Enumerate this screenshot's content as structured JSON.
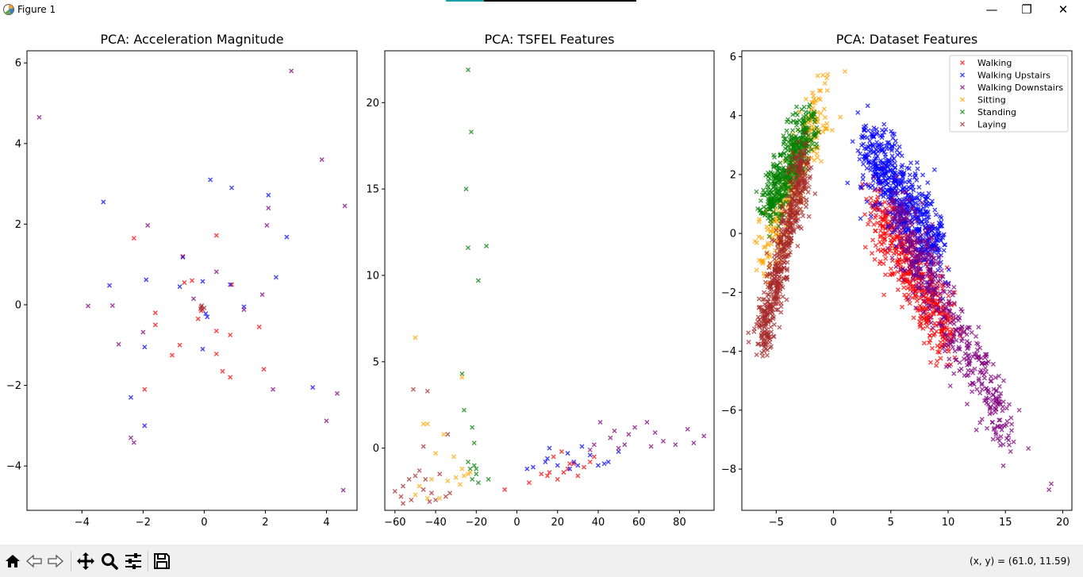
{
  "window": {
    "title": "Figure 1",
    "minimize_glyph": "—",
    "maximize_glyph": "❐",
    "close_glyph": "✕"
  },
  "toolbar": {
    "icons": [
      "home-icon",
      "back-icon",
      "forward-icon",
      "pan-icon",
      "zoom-icon",
      "configure-subplots-icon",
      "save-icon"
    ],
    "coords_text": "(x, y) = (61.0, 11.59)"
  },
  "colors": {
    "Walking": "#ff0000",
    "Walking Upstairs": "#0000ff",
    "Walking Downstairs": "#800080",
    "Sitting": "#ffa500",
    "Standing": "#008000",
    "Laying": "#a52a2a"
  },
  "chart_data": [
    {
      "type": "scatter",
      "title": "PCA: Acceleration Magnitude",
      "xlim": [
        -5.8,
        5.0
      ],
      "ylim": [
        -5.1,
        6.3
      ],
      "xticks": [
        -4,
        -2,
        0,
        2,
        4
      ],
      "yticks": [
        -4,
        -2,
        0,
        2,
        4,
        6
      ],
      "marker": "x",
      "series": [
        {
          "key": "Walking",
          "points": [
            [
              -2.3,
              1.65
            ],
            [
              -1.6,
              -0.2
            ],
            [
              -1.6,
              -0.5
            ],
            [
              -0.65,
              0.55
            ],
            [
              -0.4,
              0.6
            ],
            [
              0.4,
              1.72
            ],
            [
              0.9,
              0.5
            ],
            [
              1.8,
              -0.55
            ],
            [
              -0.7,
              1.2
            ],
            [
              -1.05,
              -1.25
            ],
            [
              -0.8,
              -1.0
            ],
            [
              0.4,
              -0.65
            ],
            [
              0.4,
              -1.22
            ],
            [
              0.6,
              -1.65
            ],
            [
              0.85,
              -1.8
            ],
            [
              0.85,
              -0.75
            ],
            [
              1.95,
              -1.6
            ],
            [
              -1.95,
              -2.1
            ],
            [
              -0.2,
              -0.35
            ],
            [
              -0.1,
              -0.15
            ]
          ]
        },
        {
          "key": "Walking Upstairs",
          "points": [
            [
              -3.3,
              2.55
            ],
            [
              -1.9,
              0.62
            ],
            [
              -3.1,
              0.48
            ],
            [
              -0.7,
              1.18
            ],
            [
              -0.8,
              0.45
            ],
            [
              0.2,
              3.1
            ],
            [
              0.9,
              2.9
            ],
            [
              2.1,
              2.72
            ],
            [
              2.35,
              0.68
            ],
            [
              2.7,
              1.68
            ],
            [
              1.3,
              -0.05
            ],
            [
              0.1,
              -0.3
            ],
            [
              0.05,
              -0.22
            ],
            [
              -0.05,
              0.58
            ],
            [
              0.85,
              0.5
            ],
            [
              -1.95,
              -1.05
            ],
            [
              -0.05,
              -1.1
            ],
            [
              -2.4,
              -2.3
            ],
            [
              -1.95,
              -3.0
            ],
            [
              3.55,
              -2.05
            ]
          ]
        },
        {
          "key": "Walking Downstairs",
          "points": [
            [
              -5.4,
              4.65
            ],
            [
              2.85,
              5.8
            ],
            [
              3.85,
              3.6
            ],
            [
              4.6,
              2.45
            ],
            [
              2.1,
              2.4
            ],
            [
              2.05,
              1.97
            ],
            [
              -1.85,
              1.97
            ],
            [
              -0.35,
              0.15
            ],
            [
              0.4,
              0.82
            ],
            [
              1.9,
              0.25
            ],
            [
              1.3,
              -0.12
            ],
            [
              -3.8,
              -0.03
            ],
            [
              -3.0,
              -0.02
            ],
            [
              -2.8,
              -0.98
            ],
            [
              -2.0,
              -0.68
            ],
            [
              2.25,
              -2.1
            ],
            [
              4.35,
              -2.2
            ],
            [
              4.0,
              -2.88
            ],
            [
              4.55,
              -4.6
            ],
            [
              -2.4,
              -3.3
            ],
            [
              -2.3,
              -3.42
            ]
          ]
        },
        {
          "key": "Laying",
          "points": [
            [
              -0.1,
              -0.05
            ],
            [
              -0.05,
              -0.12
            ],
            [
              -0.12,
              -0.1
            ],
            [
              0.0,
              -0.08
            ],
            [
              -0.08,
              -0.02
            ]
          ]
        }
      ]
    },
    {
      "type": "scatter",
      "title": "PCA: TSFEL Features",
      "xlim": [
        -65,
        97
      ],
      "ylim": [
        -3.6,
        23.0
      ],
      "xticks": [
        -60,
        -40,
        -20,
        0,
        20,
        40,
        60,
        80
      ],
      "yticks": [
        0,
        5,
        10,
        15,
        20
      ],
      "marker": "x",
      "series": [
        {
          "key": "Standing",
          "points": [
            [
              -24,
              21.9
            ],
            [
              -22.5,
              18.3
            ],
            [
              -25,
              15.0
            ],
            [
              -24,
              11.6
            ],
            [
              -15,
              11.7
            ],
            [
              -19,
              9.7
            ],
            [
              -27,
              4.3
            ],
            [
              -26,
              2.2
            ],
            [
              -22,
              1.2
            ],
            [
              -21,
              -1.0
            ],
            [
              -20,
              -1.5
            ],
            [
              -19,
              -2.0
            ],
            [
              -22,
              -1.8
            ],
            [
              -21,
              0.3
            ],
            [
              -14,
              -1.8
            ],
            [
              -24,
              -0.8
            ],
            [
              -23,
              -1.2
            ],
            [
              -20,
              -1.2
            ]
          ]
        },
        {
          "key": "Sitting",
          "points": [
            [
              -50,
              6.4
            ],
            [
              -27,
              4.1
            ],
            [
              -46,
              1.4
            ],
            [
              -44,
              1.4
            ],
            [
              -36,
              0.8
            ],
            [
              -31,
              -0.5
            ],
            [
              -30,
              -1.7
            ],
            [
              -27,
              -1.2
            ],
            [
              -24,
              -1.5
            ],
            [
              -23,
              -1.4
            ],
            [
              -40,
              -0.3
            ],
            [
              -42,
              -1.8
            ],
            [
              -48,
              -2.2
            ],
            [
              -50,
              -2.7
            ],
            [
              -44,
              -2.9
            ],
            [
              -38,
              -2.9
            ],
            [
              -34,
              -1.9
            ],
            [
              -28,
              -2.1
            ],
            [
              -26,
              -1.6
            ]
          ]
        },
        {
          "key": "Laying",
          "points": [
            [
              -51,
              3.4
            ],
            [
              -44,
              3.3
            ],
            [
              -34,
              0.8
            ],
            [
              -46,
              0.1
            ],
            [
              -48,
              -1.3
            ],
            [
              -53,
              -1.8
            ],
            [
              -56,
              -2.2
            ],
            [
              -60,
              -2.5
            ],
            [
              -57,
              -2.8
            ],
            [
              -52,
              -3.0
            ],
            [
              -46,
              -2.4
            ],
            [
              -42,
              -2.6
            ],
            [
              -40,
              -3.0
            ],
            [
              -35,
              -2.8
            ],
            [
              -43,
              -3.1
            ],
            [
              -50,
              -1.6
            ],
            [
              -45,
              -1.8
            ],
            [
              -33,
              -2.6
            ],
            [
              -56,
              -3.2
            ],
            [
              -38,
              -1.5
            ]
          ]
        },
        {
          "key": "Walking",
          "points": [
            [
              6,
              -2.0
            ],
            [
              12,
              -1.5
            ],
            [
              16,
              -1.4
            ],
            [
              20,
              -1.8
            ],
            [
              23,
              -1.4
            ],
            [
              26,
              -0.9
            ],
            [
              30,
              -1.6
            ],
            [
              33,
              -1.1
            ],
            [
              36,
              -0.8
            ],
            [
              18,
              -0.5
            ],
            [
              22,
              -0.2
            ],
            [
              28,
              -0.9
            ],
            [
              -6,
              -2.4
            ],
            [
              38,
              -0.5
            ],
            [
              15,
              -1.6
            ],
            [
              25,
              -1.2
            ]
          ]
        },
        {
          "key": "Walking Upstairs",
          "points": [
            [
              5,
              -1.2
            ],
            [
              8,
              -1.1
            ],
            [
              14,
              -0.8
            ],
            [
              16,
              0.0
            ],
            [
              20,
              -1.0
            ],
            [
              25,
              -0.3
            ],
            [
              28,
              -0.8
            ],
            [
              32,
              0.1
            ],
            [
              36,
              -0.4
            ],
            [
              40,
              -1.0
            ],
            [
              45,
              -0.8
            ],
            [
              50,
              -0.2
            ],
            [
              26,
              -1.2
            ],
            [
              30,
              -1.0
            ],
            [
              43,
              -0.9
            ],
            [
              15,
              -0.6
            ]
          ]
        },
        {
          "key": "Walking Downstairs",
          "points": [
            [
              36,
              -0.1
            ],
            [
              41,
              1.5
            ],
            [
              46,
              0.6
            ],
            [
              50,
              0.0
            ],
            [
              53,
              0.2
            ],
            [
              58,
              1.2
            ],
            [
              64,
              1.5
            ],
            [
              68,
              0.9
            ],
            [
              72,
              0.4
            ],
            [
              78,
              0.2
            ],
            [
              84,
              1.1
            ],
            [
              87,
              0.3
            ],
            [
              92,
              0.7
            ],
            [
              66,
              0.1
            ],
            [
              55,
              0.8
            ],
            [
              48,
              1.0
            ],
            [
              38,
              0.2
            ]
          ]
        }
      ]
    },
    {
      "type": "scatter",
      "title": "PCA: Dataset Features",
      "xlim": [
        -8.0,
        20.8
      ],
      "ylim": [
        -9.4,
        6.2
      ],
      "xticks": [
        -5,
        0,
        5,
        10,
        15,
        20
      ],
      "yticks": [
        -8,
        -6,
        -4,
        -2,
        0,
        2,
        4,
        6
      ],
      "marker": "x",
      "legend": {
        "position": "upper right",
        "entries": [
          "Walking",
          "Walking Upstairs",
          "Walking Downstairs",
          "Sitting",
          "Standing",
          "Laying"
        ]
      },
      "series": [
        {
          "key": "Walking",
          "cluster": {
            "center_start": [
              3.5,
              1.0
            ],
            "center_end": [
              10.0,
              -3.5
            ],
            "spread": 0.6,
            "count": 500
          }
        },
        {
          "key": "Walking Upstairs",
          "cluster": {
            "center_start": [
              2.8,
              3.0
            ],
            "center_end": [
              9.0,
              -0.5
            ],
            "spread": 0.65,
            "count": 600
          }
        },
        {
          "key": "Walking Downstairs",
          "cluster": {
            "center_start": [
              5.0,
              1.0
            ],
            "center_end": [
              15.0,
              -6.5
            ],
            "spread": 0.6,
            "count": 500
          },
          "outliers": [
            [
              18.8,
              -8.7
            ],
            [
              19.0,
              -8.5
            ],
            [
              17.0,
              -7.3
            ],
            [
              16.2,
              -6.0
            ]
          ]
        },
        {
          "key": "Sitting",
          "cluster": {
            "center_start": [
              -6.0,
              -1.0
            ],
            "center_end": [
              -1.0,
              4.5
            ],
            "spread": 0.55,
            "count": 300
          },
          "outliers": [
            [
              -0.5,
              5.4
            ],
            [
              1.0,
              5.5
            ]
          ]
        },
        {
          "key": "Standing",
          "cluster": {
            "center_start": [
              -5.8,
              0.8
            ],
            "center_end": [
              -2.0,
              3.8
            ],
            "spread": 0.45,
            "count": 450
          }
        },
        {
          "key": "Laying",
          "cluster": {
            "center_start": [
              -6.4,
              -3.8
            ],
            "center_end": [
              -2.5,
              2.5
            ],
            "spread": 0.4,
            "count": 550
          }
        }
      ]
    }
  ]
}
